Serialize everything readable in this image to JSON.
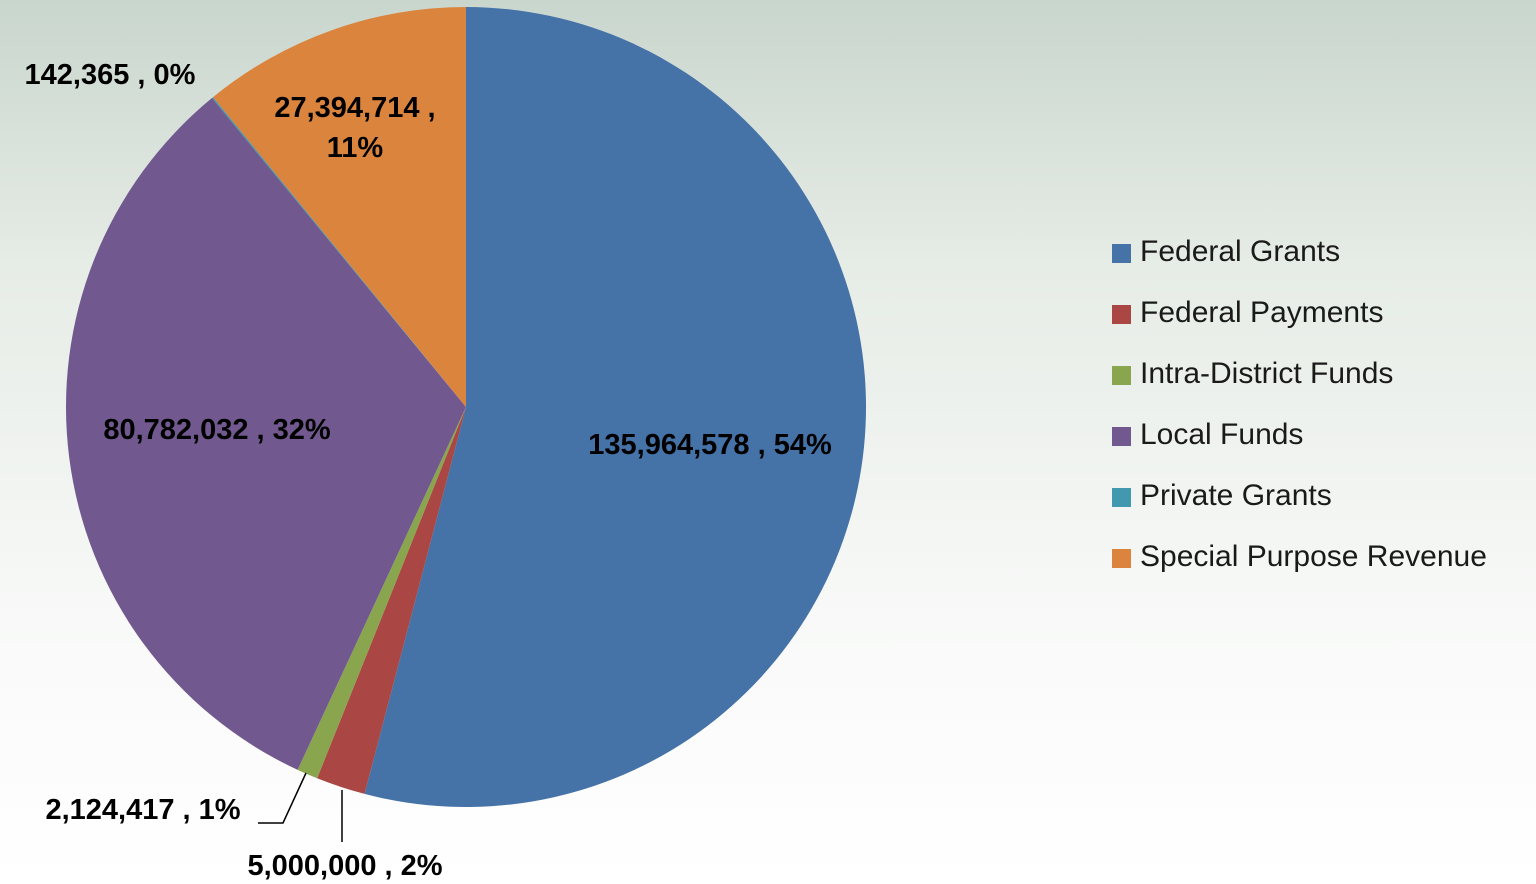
{
  "chart_data": {
    "type": "pie",
    "categories": [
      "Federal Grants",
      "Federal Payments",
      "Intra-District Funds",
      "Local Funds",
      "Private Grants",
      "Special Purpose Revenue"
    ],
    "values": [
      135964578,
      5000000,
      2124417,
      80782032,
      142365,
      27394714
    ],
    "value_labels": [
      "135,964,578 , 54%",
      "5,000,000 , 2%",
      "2,124,417 , 1%",
      "80,782,032 , 32%",
      "142,365 , 0%",
      "27,394,714 , 11%"
    ],
    "colors": [
      "#4572a7",
      "#aa4643",
      "#89a54e",
      "#71588f",
      "#4198af",
      "#db843d"
    ],
    "legend": "right"
  }
}
